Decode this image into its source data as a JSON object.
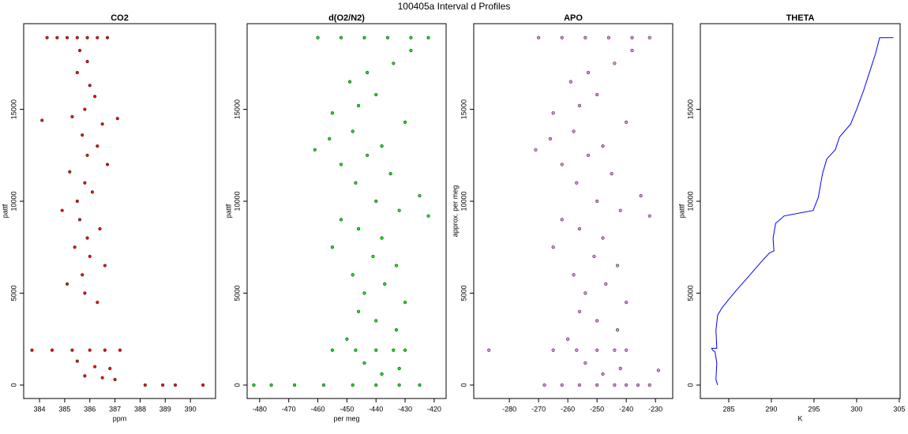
{
  "title": "100405a   Interval d Profiles",
  "chart_data": [
    {
      "type": "scatter",
      "title": "CO2",
      "xlabel": "ppm",
      "ylabel": "pattf",
      "color": "#ff0000",
      "xlim": [
        383.37,
        391.0
      ],
      "ylim": [
        -730,
        19660
      ],
      "xticks": [
        384,
        385,
        386,
        387,
        388,
        389,
        390
      ],
      "yticks": [
        0,
        5000,
        10000,
        15000
      ],
      "x": [
        384.3,
        384.7,
        385.1,
        385.5,
        385.9,
        386.3,
        386.7,
        385.6,
        385.9,
        385.5,
        386.0,
        386.2,
        385.8,
        385.3,
        386.5,
        385.7,
        386.3,
        385.9,
        386.7,
        385.2,
        385.8,
        386.1,
        385.5,
        384.9,
        385.6,
        386.4,
        385.9,
        385.4,
        386.0,
        386.6,
        385.7,
        385.1,
        385.8,
        386.3,
        383.7,
        384.5,
        385.3,
        386.0,
        386.6,
        387.2,
        385.5,
        386.2,
        386.8,
        385.8,
        386.5,
        387.0,
        388.2,
        388.9,
        389.4,
        390.5,
        384.1,
        387.1
      ],
      "values": [
        18900,
        18900,
        18900,
        18900,
        18900,
        18900,
        18900,
        18200,
        17600,
        17000,
        16300,
        15700,
        15000,
        14600,
        14200,
        13600,
        13000,
        12500,
        12000,
        11600,
        11000,
        10500,
        10000,
        9500,
        9000,
        8500,
        8000,
        7500,
        7000,
        6500,
        6000,
        5500,
        5000,
        4500,
        1900,
        1900,
        1900,
        1900,
        1900,
        1900,
        1300,
        1000,
        900,
        500,
        400,
        300,
        0,
        0,
        0,
        0,
        14400,
        14500
      ]
    },
    {
      "type": "scatter",
      "title": "d(O2/N2)",
      "xlabel": "per meg",
      "ylabel": "pattf",
      "color": "#00ee00",
      "xlim": [
        -484.3,
        -415.9
      ],
      "ylim": [
        -730,
        19660
      ],
      "xticks": [
        -480,
        -470,
        -460,
        -450,
        -440,
        -430,
        -420
      ],
      "yticks": [
        0,
        5000,
        10000,
        15000
      ],
      "x": [
        -460,
        -452,
        -444,
        -436,
        -428,
        -422,
        -428,
        -434,
        -443,
        -449,
        -440,
        -446,
        -455,
        -430,
        -448,
        -456,
        -438,
        -443,
        -452,
        -435,
        -447,
        -425,
        -440,
        -432,
        -452,
        -446,
        -438,
        -455,
        -441,
        -433,
        -448,
        -437,
        -444,
        -430,
        -446,
        -440,
        -433,
        -450,
        -455,
        -447,
        -440,
        -434,
        -430,
        -444,
        -432,
        -438,
        -482,
        -476,
        -468,
        -458,
        -448,
        -440,
        -432,
        -425,
        -422,
        -461
      ],
      "values": [
        18900,
        18900,
        18900,
        18900,
        18900,
        18900,
        18200,
        17500,
        17000,
        16500,
        15800,
        15200,
        14800,
        14300,
        13800,
        13400,
        13000,
        12500,
        12000,
        11500,
        11000,
        10300,
        10000,
        9500,
        9000,
        8500,
        8000,
        7500,
        7000,
        6500,
        6000,
        5500,
        5000,
        4500,
        4000,
        3500,
        3000,
        2500,
        1900,
        1900,
        1900,
        1900,
        1900,
        1200,
        900,
        600,
        0,
        0,
        0,
        0,
        0,
        0,
        0,
        0,
        9200,
        12800
      ]
    },
    {
      "type": "scatter",
      "title": "APO",
      "ylabel": "approx. per meg",
      "color": "#ee82ee",
      "xlim": [
        -292.2,
        -224.1
      ],
      "ylim": [
        -730,
        19660
      ],
      "xticks": [
        -280,
        -270,
        -260,
        -250,
        -240,
        -230
      ],
      "yticks": [
        0,
        5000,
        10000,
        15000
      ],
      "x": [
        -270,
        -262,
        -254,
        -246,
        -238,
        -232,
        -238,
        -244,
        -253,
        -259,
        -250,
        -256,
        -265,
        -240,
        -258,
        -266,
        -248,
        -253,
        -262,
        -245,
        -257,
        -235,
        -250,
        -242,
        -262,
        -256,
        -248,
        -265,
        -251,
        -243,
        -258,
        -247,
        -254,
        -240,
        -256,
        -250,
        -243,
        -260,
        -265,
        -257,
        -250,
        -244,
        -240,
        -254,
        -242,
        -248,
        -268,
        -262,
        -256,
        -250,
        -244,
        -240,
        -236,
        -232,
        -232,
        -271,
        -287,
        -229
      ],
      "values": [
        18900,
        18900,
        18900,
        18900,
        18900,
        18900,
        18200,
        17500,
        17000,
        16500,
        15800,
        15200,
        14800,
        14300,
        13800,
        13400,
        13000,
        12500,
        12000,
        11500,
        11000,
        10300,
        10000,
        9500,
        9000,
        8500,
        8000,
        7500,
        7000,
        6500,
        6000,
        5500,
        5000,
        4500,
        4000,
        3500,
        3000,
        2500,
        1900,
        1900,
        1900,
        1900,
        1900,
        1200,
        900,
        600,
        0,
        0,
        0,
        0,
        0,
        0,
        0,
        0,
        9200,
        12800,
        1900,
        800
      ]
    },
    {
      "type": "line",
      "title": "THETA",
      "xlabel": "K",
      "ylabel": "pattf",
      "color": "#0000ff",
      "xlim": [
        281.67,
        305.1
      ],
      "ylim": [
        -730,
        19660
      ],
      "xticks": [
        285,
        290,
        295,
        300,
        305
      ],
      "yticks": [
        0,
        5000,
        10000,
        15000
      ],
      "x": [
        283.7,
        283.5,
        283.6,
        283.4,
        283.1,
        283.0,
        283.6,
        283.5,
        283.7,
        284.2,
        285.6,
        287.5,
        289.0,
        289.8,
        290.3,
        290.2,
        290.5,
        291.5,
        294.9,
        295.5,
        296.0,
        296.5,
        297.5,
        298.0,
        299.3,
        300.0,
        300.8,
        301.5,
        302.2,
        302.7,
        304.3
      ],
      "values": [
        0,
        300,
        1200,
        1800,
        1900,
        2000,
        2000,
        3000,
        3800,
        4200,
        5000,
        6000,
        6800,
        7200,
        7300,
        8000,
        8800,
        9200,
        9500,
        10200,
        11500,
        12300,
        12800,
        13500,
        14200,
        15000,
        16000,
        17000,
        18000,
        18900,
        18900
      ]
    }
  ]
}
